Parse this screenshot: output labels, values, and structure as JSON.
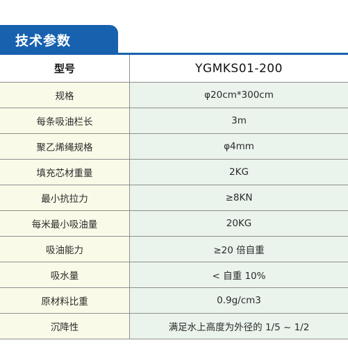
{
  "section": {
    "title": "技术参数"
  },
  "table": {
    "header": {
      "label": "型号",
      "value": "YGMKS01-200"
    },
    "rows": [
      {
        "label": "规格",
        "value": "φ20cm*300cm"
      },
      {
        "label": "每条吸油栏长",
        "value": "3m"
      },
      {
        "label": "聚乙烯绳规格",
        "value": "φ4mm"
      },
      {
        "label": "填充芯材重量",
        "value": "2KG"
      },
      {
        "label": "最小抗拉力",
        "value": "≥8KN"
      },
      {
        "label": "每米最小吸油量",
        "value": "20KG"
      },
      {
        "label": "吸油能力",
        "value": "≥20 倍自重"
      },
      {
        "label": "吸水量",
        "value": "< 自重 10%"
      },
      {
        "label": "原材料比重",
        "value": "0.9g/cm3"
      },
      {
        "label": "沉降性",
        "value": "满足水上高度为外径的 1/5 ~ 1/2"
      }
    ]
  },
  "colors": {
    "accent": "#1761ae",
    "label_bg": "#fafae8",
    "value_bg": "#eaf3ec"
  }
}
